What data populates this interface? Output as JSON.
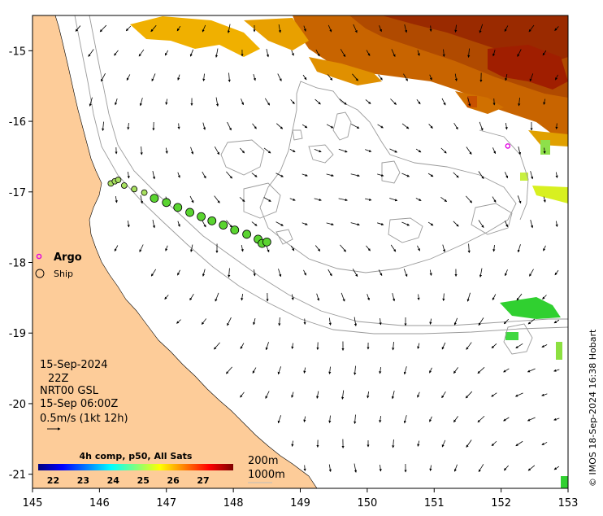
{
  "map": {
    "lon_range": [
      145,
      153
    ],
    "lat_range": [
      -21.2,
      -14.5
    ],
    "x_ticks": [
      "145",
      "146",
      "147",
      "148",
      "149",
      "150",
      "151",
      "152",
      "153"
    ],
    "y_ticks": [
      "-15",
      "-16",
      "-17",
      "-18",
      "-19",
      "-20",
      "-21"
    ],
    "colors": {
      "land": "#fdcc99",
      "ocean": "#ffffff",
      "contour": "#9a9a9a",
      "argo": "#e000e0",
      "frame": "#000000"
    }
  },
  "legend": {
    "argo_label": "Argo",
    "ship_label": "Ship"
  },
  "info": {
    "date": "15-Sep-2024",
    "hour": "22Z",
    "product": "NRT00 GSL",
    "valid": "15-Sep 06:00Z",
    "scale": "0.5m/s (1kt 12h)"
  },
  "colorbar": {
    "title": "4h comp, p50, All Sats",
    "ticks": [
      "22",
      "23",
      "24",
      "25",
      "26",
      "27"
    ],
    "range": [
      21.5,
      28
    ],
    "colors": [
      "#00007f",
      "#0000ff",
      "#007fff",
      "#00ffff",
      "#7fff7f",
      "#ffff00",
      "#ff7f00",
      "#ff0000",
      "#7f0000"
    ]
  },
  "depth_legend": {
    "contour_200": "200m",
    "contour_1000": "1000m"
  },
  "credit": "© IMOS 18-Sep-2024 16:38 Hobart",
  "argo_float": {
    "lon": 152.1,
    "lat": -16.35
  },
  "ship_track": [
    {
      "lon": 146.17,
      "lat": -16.88
    },
    {
      "lon": 146.23,
      "lat": -16.85
    },
    {
      "lon": 146.28,
      "lat": -16.83
    },
    {
      "lon": 146.37,
      "lat": -16.91
    },
    {
      "lon": 146.52,
      "lat": -16.96
    },
    {
      "lon": 146.67,
      "lat": -17.01
    },
    {
      "lon": 146.82,
      "lat": -17.09
    },
    {
      "lon": 147.0,
      "lat": -17.15
    },
    {
      "lon": 147.17,
      "lat": -17.22
    },
    {
      "lon": 147.35,
      "lat": -17.29
    },
    {
      "lon": 147.52,
      "lat": -17.35
    },
    {
      "lon": 147.68,
      "lat": -17.41
    },
    {
      "lon": 147.85,
      "lat": -17.47
    },
    {
      "lon": 148.02,
      "lat": -17.54
    },
    {
      "lon": 148.2,
      "lat": -17.6
    },
    {
      "lon": 148.37,
      "lat": -17.67
    },
    {
      "lon": 148.43,
      "lat": -17.73
    },
    {
      "lon": 148.5,
      "lat": -17.71
    }
  ]
}
